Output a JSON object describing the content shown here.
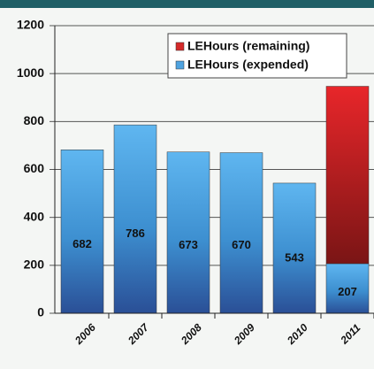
{
  "chart_data": {
    "type": "stacked_bar",
    "categories": [
      "2006",
      "2007",
      "2008",
      "2009",
      "2010",
      "2011"
    ],
    "series": [
      {
        "name": "LEHours (expended)",
        "color": "#4fa3e0",
        "values": [
          682,
          786,
          673,
          670,
          543,
          207
        ]
      },
      {
        "name": "LEHours (remaining)",
        "color": "#d42a2a",
        "values": [
          null,
          null,
          null,
          null,
          null,
          740
        ]
      }
    ],
    "ylim": [
      0,
      1200
    ],
    "yticks": [
      0,
      200,
      400,
      600,
      800,
      1000,
      1200
    ],
    "grid": true,
    "legend": "upper right"
  }
}
